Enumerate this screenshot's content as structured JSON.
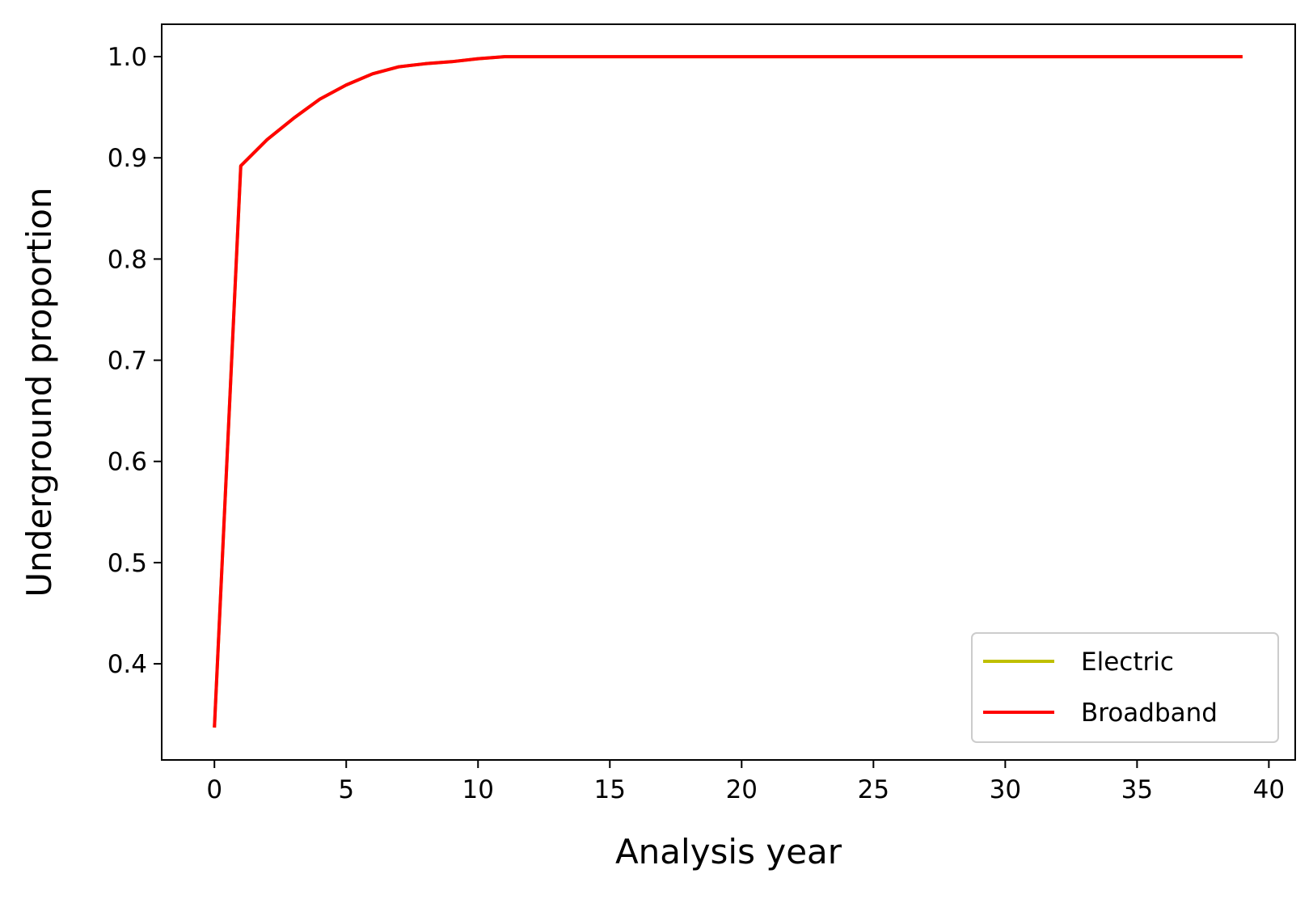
{
  "chart_data": {
    "type": "line",
    "title": "",
    "xlabel": "Analysis year",
    "ylabel": "Underground proportion",
    "xlim": [
      -2,
      41
    ],
    "ylim": [
      0.305,
      1.032
    ],
    "xticks": [
      0,
      5,
      10,
      15,
      20,
      25,
      30,
      35,
      40
    ],
    "yticks": [
      0.4,
      0.5,
      0.6,
      0.7,
      0.8,
      0.9,
      1.0
    ],
    "xtick_labels": [
      "0",
      "5",
      "10",
      "15",
      "20",
      "25",
      "30",
      "35",
      "40"
    ],
    "ytick_labels": [
      "0.4",
      "0.5",
      "0.6",
      "0.7",
      "0.8",
      "0.9",
      "1.0"
    ],
    "grid": false,
    "legend_position": "lower-right",
    "x": [
      0,
      1,
      2,
      3,
      4,
      5,
      6,
      7,
      8,
      9,
      10,
      11,
      12,
      13,
      14,
      15,
      16,
      17,
      18,
      19,
      20,
      21,
      22,
      23,
      24,
      25,
      26,
      27,
      28,
      29,
      30,
      31,
      32,
      33,
      34,
      35,
      36,
      37,
      38,
      39
    ],
    "series": [
      {
        "name": "Electric",
        "color": "#bfbf00",
        "values": [
          0.337,
          0.892,
          0.918,
          0.939,
          0.958,
          0.972,
          0.983,
          0.99,
          0.993,
          0.995,
          0.998,
          1.0,
          1.0,
          1.0,
          1.0,
          1.0,
          1.0,
          1.0,
          1.0,
          1.0,
          1.0,
          1.0,
          1.0,
          1.0,
          1.0,
          1.0,
          1.0,
          1.0,
          1.0,
          1.0,
          1.0,
          1.0,
          1.0,
          1.0,
          1.0,
          1.0,
          1.0,
          1.0,
          1.0,
          1.0
        ]
      },
      {
        "name": "Broadband",
        "color": "#ff0000",
        "values": [
          0.337,
          0.892,
          0.918,
          0.939,
          0.958,
          0.972,
          0.983,
          0.99,
          0.993,
          0.995,
          0.998,
          1.0,
          1.0,
          1.0,
          1.0,
          1.0,
          1.0,
          1.0,
          1.0,
          1.0,
          1.0,
          1.0,
          1.0,
          1.0,
          1.0,
          1.0,
          1.0,
          1.0,
          1.0,
          1.0,
          1.0,
          1.0,
          1.0,
          1.0,
          1.0,
          1.0,
          1.0,
          1.0,
          1.0,
          1.0
        ]
      }
    ]
  }
}
